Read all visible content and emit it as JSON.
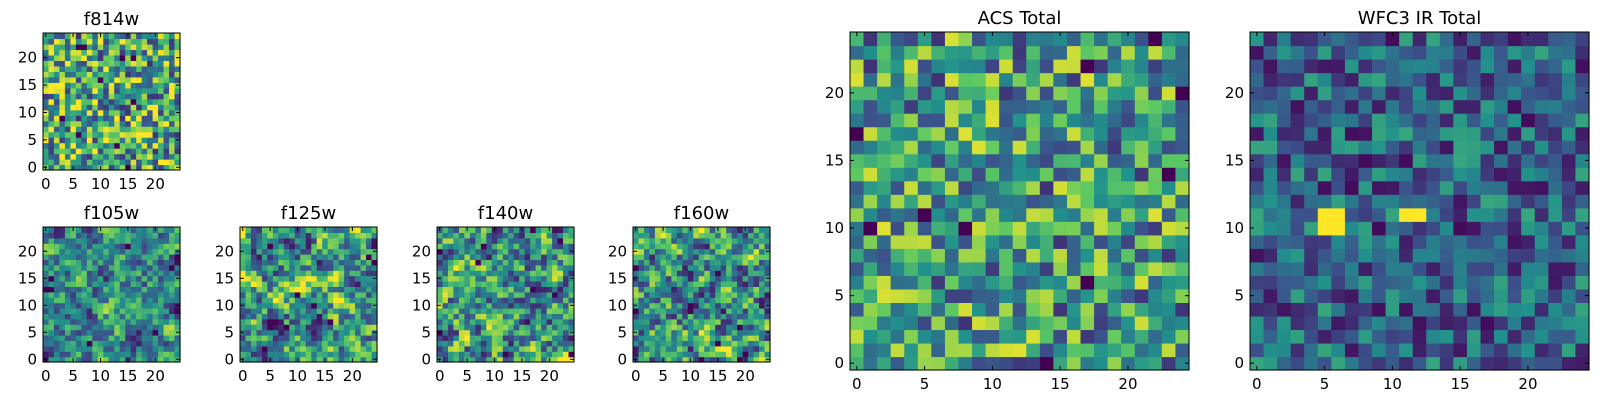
{
  "figure": {
    "colormap": [
      "#440154",
      "#3b528b",
      "#21918c",
      "#5ec962",
      "#fde725"
    ]
  },
  "chart_data": [
    {
      "id": "f814w",
      "type": "heatmap",
      "title": "f814w",
      "grid_size": 25,
      "xlim": [
        0,
        24
      ],
      "ylim": [
        0,
        24
      ],
      "xticks": [
        0,
        5,
        10,
        15,
        20
      ],
      "yticks": [
        0,
        5,
        10,
        15,
        20
      ],
      "xlabel": "",
      "ylabel": "",
      "style": "noisy"
    },
    {
      "id": "f105w",
      "type": "heatmap",
      "title": "f105w",
      "grid_size": 25,
      "xlim": [
        0,
        24
      ],
      "ylim": [
        0,
        24
      ],
      "xticks": [
        0,
        5,
        10,
        15,
        20
      ],
      "yticks": [
        0,
        5,
        10,
        15,
        20
      ],
      "xlabel": "",
      "ylabel": "",
      "style": "smooth-bright"
    },
    {
      "id": "f125w",
      "type": "heatmap",
      "title": "f125w",
      "grid_size": 25,
      "xlim": [
        0,
        24
      ],
      "ylim": [
        0,
        24
      ],
      "xticks": [
        0,
        5,
        10,
        15,
        20
      ],
      "yticks": [
        0,
        5,
        10,
        15,
        20
      ],
      "xlabel": "",
      "ylabel": "",
      "style": "smooth"
    },
    {
      "id": "f140w",
      "type": "heatmap",
      "title": "f140w",
      "grid_size": 25,
      "xlim": [
        0,
        24
      ],
      "ylim": [
        0,
        24
      ],
      "xticks": [
        0,
        5,
        10,
        15,
        20
      ],
      "yticks": [
        0,
        5,
        10,
        15,
        20
      ],
      "xlabel": "",
      "ylabel": "",
      "style": "smooth"
    },
    {
      "id": "f160w",
      "type": "heatmap",
      "title": "f160w",
      "grid_size": 25,
      "xlim": [
        0,
        24
      ],
      "ylim": [
        0,
        24
      ],
      "xticks": [
        0,
        5,
        10,
        15,
        20
      ],
      "yticks": [
        0,
        5,
        10,
        15,
        20
      ],
      "xlabel": "",
      "ylabel": "",
      "style": "smooth"
    },
    {
      "id": "acs",
      "type": "heatmap",
      "title": "ACS Total",
      "grid_size": 25,
      "xlim": [
        0,
        24
      ],
      "ylim": [
        0,
        24
      ],
      "xticks": [
        0,
        5,
        10,
        15,
        20
      ],
      "yticks": [
        0,
        5,
        10,
        15,
        20
      ],
      "xlabel": "",
      "ylabel": "",
      "style": "acs"
    },
    {
      "id": "wfc3",
      "type": "heatmap",
      "title": "WFC3 IR Total",
      "grid_size": 25,
      "xlim": [
        0,
        24
      ],
      "ylim": [
        0,
        24
      ],
      "xticks": [
        0,
        5,
        10,
        15,
        20
      ],
      "yticks": [
        0,
        5,
        10,
        15,
        20
      ],
      "xlabel": "",
      "ylabel": "",
      "style": "wfc3",
      "bright_spots": [
        [
          5,
          10
        ],
        [
          6,
          10
        ],
        [
          5,
          11
        ],
        [
          6,
          11
        ],
        [
          11,
          11
        ],
        [
          12,
          11
        ]
      ]
    }
  ]
}
